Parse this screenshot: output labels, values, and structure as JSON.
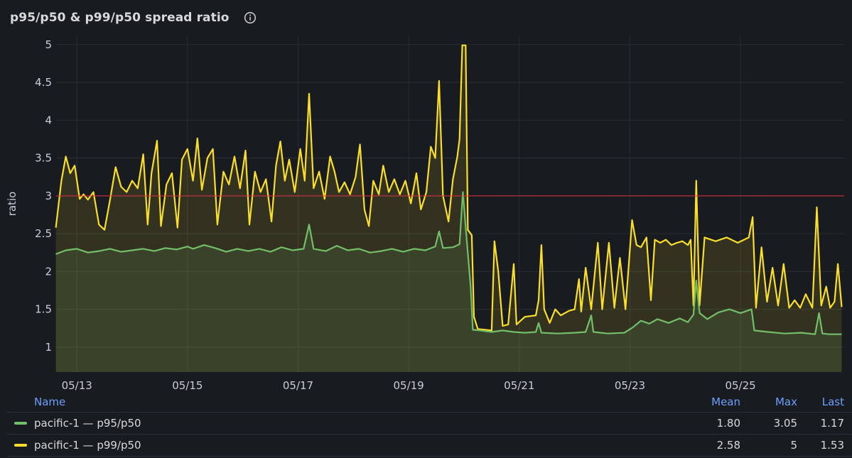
{
  "panel": {
    "title": "p95/p50 & p99/p50 spread ratio",
    "info_icon": "info-circle-icon"
  },
  "colors": {
    "background": "#181b1f",
    "p95": "#73bf69",
    "p99": "#fade2a",
    "threshold": "#e02f44",
    "grid": "#2a2d33",
    "legend_header": "#6e9fff"
  },
  "legend": {
    "headers": {
      "name": "Name",
      "mean": "Mean",
      "max": "Max",
      "last": "Last"
    },
    "rows": [
      {
        "name": "pacific-1 — p95/p50",
        "mean": "1.80",
        "max": "3.05",
        "last": "1.17",
        "color": "#73bf69"
      },
      {
        "name": "pacific-1 — p99/p50",
        "mean": "2.58",
        "max": "5",
        "last": "1.53",
        "color": "#fade2a"
      }
    ]
  },
  "chart_data": {
    "type": "line",
    "ylabel": "ratio",
    "xlabel": "",
    "ylim": [
      0.67,
      5.12
    ],
    "xlim": [
      "05/12 15:00",
      "05/26 21:00"
    ],
    "y_ticks": [
      "1",
      "1.5",
      "2",
      "2.5",
      "3",
      "3.5",
      "4",
      "4.5",
      "5"
    ],
    "x_ticks": [
      "05/13",
      "05/15",
      "05/17",
      "05/19",
      "05/21",
      "05/23",
      "05/25"
    ],
    "threshold": 3,
    "fill": true,
    "x_unit": "days since 05/12 00:00",
    "series": [
      {
        "name": "pacific-1 — p95/p50",
        "color": "#73bf69",
        "points": [
          [
            12.62,
            2.23
          ],
          [
            12.8,
            2.28
          ],
          [
            13.0,
            2.3
          ],
          [
            13.2,
            2.25
          ],
          [
            13.4,
            2.27
          ],
          [
            13.6,
            2.3
          ],
          [
            13.8,
            2.26
          ],
          [
            14.0,
            2.28
          ],
          [
            14.2,
            2.3
          ],
          [
            14.4,
            2.27
          ],
          [
            14.6,
            2.31
          ],
          [
            14.8,
            2.29
          ],
          [
            15.0,
            2.33
          ],
          [
            15.1,
            2.3
          ],
          [
            15.3,
            2.35
          ],
          [
            15.5,
            2.31
          ],
          [
            15.7,
            2.26
          ],
          [
            15.9,
            2.3
          ],
          [
            16.1,
            2.27
          ],
          [
            16.3,
            2.3
          ],
          [
            16.5,
            2.26
          ],
          [
            16.7,
            2.32
          ],
          [
            16.9,
            2.28
          ],
          [
            17.1,
            2.3
          ],
          [
            17.2,
            2.62
          ],
          [
            17.28,
            2.3
          ],
          [
            17.5,
            2.27
          ],
          [
            17.7,
            2.34
          ],
          [
            17.9,
            2.28
          ],
          [
            18.1,
            2.3
          ],
          [
            18.3,
            2.25
          ],
          [
            18.5,
            2.27
          ],
          [
            18.7,
            2.3
          ],
          [
            18.9,
            2.26
          ],
          [
            19.1,
            2.3
          ],
          [
            19.3,
            2.28
          ],
          [
            19.48,
            2.33
          ],
          [
            19.55,
            2.53
          ],
          [
            19.62,
            2.31
          ],
          [
            19.8,
            2.32
          ],
          [
            19.92,
            2.36
          ],
          [
            19.98,
            3.05
          ],
          [
            20.04,
            2.5
          ],
          [
            20.12,
            1.8
          ],
          [
            20.16,
            1.23
          ],
          [
            20.3,
            1.22
          ],
          [
            20.5,
            1.2
          ],
          [
            20.7,
            1.22
          ],
          [
            20.9,
            1.2
          ],
          [
            21.1,
            1.19
          ],
          [
            21.3,
            1.2
          ],
          [
            21.35,
            1.32
          ],
          [
            21.4,
            1.19
          ],
          [
            21.7,
            1.18
          ],
          [
            22.0,
            1.19
          ],
          [
            22.2,
            1.2
          ],
          [
            22.3,
            1.42
          ],
          [
            22.34,
            1.2
          ],
          [
            22.6,
            1.18
          ],
          [
            22.9,
            1.19
          ],
          [
            23.05,
            1.26
          ],
          [
            23.2,
            1.35
          ],
          [
            23.35,
            1.31
          ],
          [
            23.5,
            1.37
          ],
          [
            23.7,
            1.32
          ],
          [
            23.9,
            1.38
          ],
          [
            24.05,
            1.33
          ],
          [
            24.15,
            1.43
          ],
          [
            24.2,
            1.88
          ],
          [
            24.26,
            1.45
          ],
          [
            24.4,
            1.37
          ],
          [
            24.6,
            1.46
          ],
          [
            24.8,
            1.5
          ],
          [
            25.0,
            1.45
          ],
          [
            25.2,
            1.5
          ],
          [
            25.25,
            1.22
          ],
          [
            25.5,
            1.2
          ],
          [
            25.8,
            1.18
          ],
          [
            26.1,
            1.19
          ],
          [
            26.35,
            1.17
          ],
          [
            26.42,
            1.45
          ],
          [
            26.48,
            1.18
          ],
          [
            26.6,
            1.17
          ],
          [
            26.83,
            1.17
          ]
        ]
      },
      {
        "name": "pacific-1 — p99/p50",
        "color": "#fade2a",
        "points": [
          [
            12.62,
            2.58
          ],
          [
            12.72,
            3.2
          ],
          [
            12.8,
            3.52
          ],
          [
            12.88,
            3.3
          ],
          [
            12.96,
            3.4
          ],
          [
            13.05,
            2.96
          ],
          [
            13.12,
            3.02
          ],
          [
            13.2,
            2.95
          ],
          [
            13.3,
            3.05
          ],
          [
            13.4,
            2.62
          ],
          [
            13.5,
            2.55
          ],
          [
            13.6,
            2.95
          ],
          [
            13.7,
            3.38
          ],
          [
            13.8,
            3.12
          ],
          [
            13.9,
            3.05
          ],
          [
            14.0,
            3.2
          ],
          [
            14.1,
            3.1
          ],
          [
            14.2,
            3.55
          ],
          [
            14.28,
            2.62
          ],
          [
            14.35,
            3.3
          ],
          [
            14.45,
            3.73
          ],
          [
            14.52,
            2.6
          ],
          [
            14.62,
            3.15
          ],
          [
            14.72,
            3.3
          ],
          [
            14.82,
            2.58
          ],
          [
            14.9,
            3.48
          ],
          [
            15.0,
            3.62
          ],
          [
            15.1,
            3.2
          ],
          [
            15.18,
            3.76
          ],
          [
            15.26,
            3.08
          ],
          [
            15.36,
            3.5
          ],
          [
            15.46,
            3.62
          ],
          [
            15.54,
            2.62
          ],
          [
            15.65,
            3.32
          ],
          [
            15.75,
            3.15
          ],
          [
            15.85,
            3.52
          ],
          [
            15.95,
            3.1
          ],
          [
            16.05,
            3.6
          ],
          [
            16.12,
            2.62
          ],
          [
            16.22,
            3.32
          ],
          [
            16.32,
            3.05
          ],
          [
            16.42,
            3.22
          ],
          [
            16.52,
            2.66
          ],
          [
            16.6,
            3.4
          ],
          [
            16.68,
            3.72
          ],
          [
            16.76,
            3.2
          ],
          [
            16.84,
            3.48
          ],
          [
            16.94,
            3.05
          ],
          [
            17.04,
            3.62
          ],
          [
            17.12,
            3.2
          ],
          [
            17.2,
            4.35
          ],
          [
            17.28,
            3.1
          ],
          [
            17.38,
            3.32
          ],
          [
            17.48,
            2.96
          ],
          [
            17.58,
            3.52
          ],
          [
            17.66,
            3.32
          ],
          [
            17.74,
            3.05
          ],
          [
            17.84,
            3.18
          ],
          [
            17.94,
            3.02
          ],
          [
            18.04,
            3.25
          ],
          [
            18.12,
            3.68
          ],
          [
            18.2,
            2.82
          ],
          [
            18.28,
            2.6
          ],
          [
            18.36,
            3.2
          ],
          [
            18.46,
            3.02
          ],
          [
            18.54,
            3.4
          ],
          [
            18.64,
            3.05
          ],
          [
            18.74,
            3.22
          ],
          [
            18.84,
            3.02
          ],
          [
            18.94,
            3.2
          ],
          [
            19.04,
            2.9
          ],
          [
            19.14,
            3.3
          ],
          [
            19.22,
            2.82
          ],
          [
            19.32,
            3.05
          ],
          [
            19.4,
            3.65
          ],
          [
            19.48,
            3.5
          ],
          [
            19.55,
            4.52
          ],
          [
            19.62,
            3.0
          ],
          [
            19.72,
            2.66
          ],
          [
            19.8,
            3.22
          ],
          [
            19.88,
            3.52
          ],
          [
            19.92,
            3.75
          ],
          [
            19.97,
            4.99
          ],
          [
            20.03,
            4.99
          ],
          [
            20.07,
            2.55
          ],
          [
            20.14,
            2.48
          ],
          [
            20.18,
            1.4
          ],
          [
            20.25,
            1.24
          ],
          [
            20.5,
            1.22
          ],
          [
            20.55,
            2.4
          ],
          [
            20.62,
            2.0
          ],
          [
            20.7,
            1.28
          ],
          [
            20.8,
            1.3
          ],
          [
            20.9,
            2.1
          ],
          [
            20.95,
            1.3
          ],
          [
            21.1,
            1.4
          ],
          [
            21.3,
            1.42
          ],
          [
            21.35,
            1.62
          ],
          [
            21.4,
            2.35
          ],
          [
            21.45,
            1.5
          ],
          [
            21.55,
            1.32
          ],
          [
            21.65,
            1.5
          ],
          [
            21.75,
            1.42
          ],
          [
            21.9,
            1.48
          ],
          [
            22.0,
            1.5
          ],
          [
            22.08,
            1.9
          ],
          [
            22.12,
            1.47
          ],
          [
            22.2,
            2.05
          ],
          [
            22.3,
            1.5
          ],
          [
            22.42,
            2.38
          ],
          [
            22.5,
            1.5
          ],
          [
            22.62,
            2.38
          ],
          [
            22.72,
            1.52
          ],
          [
            22.82,
            2.18
          ],
          [
            22.92,
            1.5
          ],
          [
            23.04,
            2.68
          ],
          [
            23.12,
            2.35
          ],
          [
            23.2,
            2.32
          ],
          [
            23.3,
            2.45
          ],
          [
            23.38,
            1.62
          ],
          [
            23.45,
            2.42
          ],
          [
            23.55,
            2.38
          ],
          [
            23.65,
            2.42
          ],
          [
            23.75,
            2.35
          ],
          [
            23.85,
            2.38
          ],
          [
            23.95,
            2.4
          ],
          [
            24.05,
            2.35
          ],
          [
            24.1,
            2.42
          ],
          [
            24.15,
            1.55
          ],
          [
            24.2,
            3.2
          ],
          [
            24.26,
            1.55
          ],
          [
            24.35,
            2.45
          ],
          [
            24.55,
            2.4
          ],
          [
            24.75,
            2.45
          ],
          [
            24.95,
            2.38
          ],
          [
            25.15,
            2.45
          ],
          [
            25.22,
            2.72
          ],
          [
            25.28,
            1.52
          ],
          [
            25.38,
            2.32
          ],
          [
            25.48,
            1.6
          ],
          [
            25.58,
            2.05
          ],
          [
            25.68,
            1.55
          ],
          [
            25.78,
            2.1
          ],
          [
            25.88,
            1.52
          ],
          [
            25.98,
            1.62
          ],
          [
            26.08,
            1.52
          ],
          [
            26.18,
            1.7
          ],
          [
            26.3,
            1.52
          ],
          [
            26.38,
            2.85
          ],
          [
            26.46,
            1.55
          ],
          [
            26.55,
            1.8
          ],
          [
            26.62,
            1.52
          ],
          [
            26.7,
            1.6
          ],
          [
            26.76,
            2.1
          ],
          [
            26.83,
            1.53
          ]
        ]
      }
    ]
  }
}
